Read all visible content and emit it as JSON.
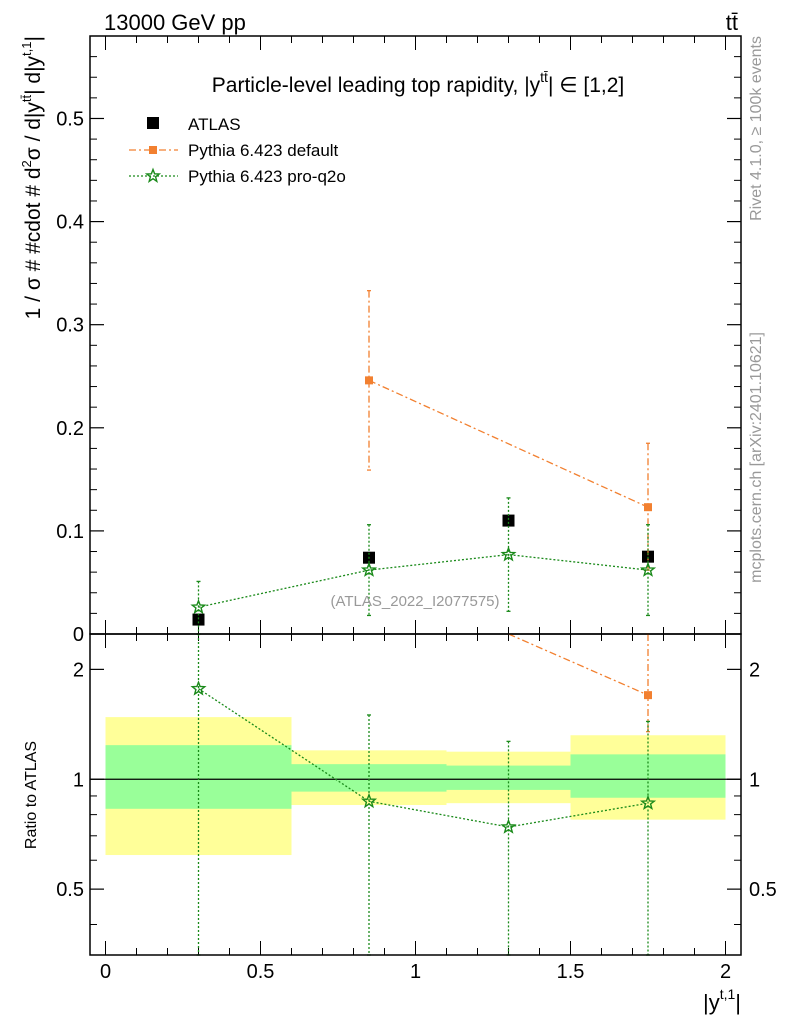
{
  "header": {
    "left": "13000 GeV pp",
    "right": "tt̄"
  },
  "side_labels": {
    "rivet": "Rivet 4.1.0, ≥ 100k events",
    "mcplots": "mcplots.cern.ch [arXiv:2401.10621]"
  },
  "colors": {
    "atlas": "#000000",
    "default": "#f28030",
    "proq2o": "#1a8a1a",
    "band_yellow": "#ffff99",
    "band_green": "#99ff99"
  },
  "chart_data": [
    {
      "type": "scatter",
      "panel": "main",
      "title": "Particle-level leading top rapidity, |y^{tt̄}| ∈ [1,2]",
      "title_parts": {
        "pre": "Particle-level leading top rapidity, |",
        "y": "y",
        "sup": "tt̄",
        "post": "| ∈ [1,2]"
      },
      "ylabel": "1 / σ # #cdot # d²σ / d|y^{tt̄}| d|y^{t,1}|",
      "ylabel_parts": {
        "a": "1 / σ # #cdot # d",
        "b": "σ / d|y",
        "c": "| d|y",
        "d": "|",
        "sup1": "2",
        "sup2": "tt̄",
        "sup3": "t,1"
      },
      "xlim": [
        -0.05,
        2.05
      ],
      "ylim": [
        0,
        0.58
      ],
      "yticks": [
        0,
        0.1,
        0.2,
        0.3,
        0.4,
        0.5
      ],
      "ytick_labels": [
        "0",
        "0.1",
        "0.2",
        "0.3",
        "0.4",
        "0.5"
      ],
      "watermark": "(ATLAS_2022_I2077575)",
      "legend": [
        "ATLAS",
        "Pythia 6.423 default",
        "Pythia 6.423 pro-q2o"
      ],
      "legend_position": "top-left",
      "series": [
        {
          "name": "ATLAS",
          "x": [
            0.3,
            0.85,
            1.3,
            1.75
          ],
          "y": [
            0.014,
            0.074,
            0.11,
            0.075
          ],
          "marker": "square",
          "color": "#000000"
        },
        {
          "name": "Pythia 6.423 default",
          "x": [
            0.85,
            1.75
          ],
          "y": [
            0.246,
            0.123
          ],
          "ylo": [
            0.159,
            0.062
          ],
          "yhi": [
            0.333,
            0.185
          ],
          "marker": "square-small",
          "color": "#f28030",
          "line": "dashdot"
        },
        {
          "name": "Pythia 6.423 pro-q2o",
          "x": [
            0.3,
            0.85,
            1.3,
            1.75
          ],
          "y": [
            0.026,
            0.062,
            0.077,
            0.062
          ],
          "ylo": [
            0.0,
            0.018,
            0.022,
            0.018
          ],
          "yhi": [
            0.051,
            0.106,
            0.132,
            0.106
          ],
          "marker": "star",
          "color": "#1a8a1a",
          "line": "dotted"
        }
      ]
    },
    {
      "type": "scatter",
      "panel": "ratio",
      "ylabel": "Ratio to ATLAS",
      "xlabel": "|y^{t,1}|",
      "xlabel_parts": {
        "pre": "|y",
        "sup": "t,1",
        "post": "|"
      },
      "xlim": [
        -0.05,
        2.05
      ],
      "ylim": [
        0.33,
        2.5
      ],
      "yticks": [
        0.5,
        1,
        2
      ],
      "ytick_labels": [
        "0.5",
        "1",
        "2"
      ],
      "xticks": [
        0,
        0.5,
        1,
        1.5,
        2
      ],
      "xtick_labels": [
        "0",
        "0.5",
        "1",
        "1.5",
        "2"
      ],
      "bands": [
        {
          "x0": 0.0,
          "x1": 0.6,
          "yellow": [
            0.62,
            1.48
          ],
          "green": [
            0.83,
            1.24
          ]
        },
        {
          "x0": 0.6,
          "x1": 1.1,
          "yellow": [
            0.85,
            1.2
          ],
          "green": [
            0.925,
            1.1
          ]
        },
        {
          "x0": 1.1,
          "x1": 1.5,
          "yellow": [
            0.86,
            1.19
          ],
          "green": [
            0.935,
            1.09
          ]
        },
        {
          "x0": 1.5,
          "x1": 2.0,
          "yellow": [
            0.775,
            1.32
          ],
          "green": [
            0.89,
            1.17
          ]
        }
      ],
      "series": [
        {
          "name": "Pythia 6.423 default",
          "x": [
            1.3,
            1.75
          ],
          "y": [
            2.5,
            1.7
          ],
          "ylo": [
            null,
            1.35
          ],
          "yhi": [
            null,
            2.5
          ],
          "marker": "square-small",
          "color": "#f28030",
          "line": "dashdot",
          "markers_shown": [
            false,
            true
          ]
        },
        {
          "name": "Pythia 6.423 pro-q2o",
          "x": [
            0.3,
            0.85,
            1.3,
            1.75
          ],
          "y": [
            1.77,
            0.87,
            0.74,
            0.86
          ],
          "ylo": [
            0.33,
            0.33,
            0.33,
            0.33
          ],
          "yhi": [
            2.5,
            1.5,
            1.27,
            1.44
          ],
          "marker": "star",
          "color": "#1a8a1a",
          "line": "dotted"
        }
      ]
    }
  ]
}
